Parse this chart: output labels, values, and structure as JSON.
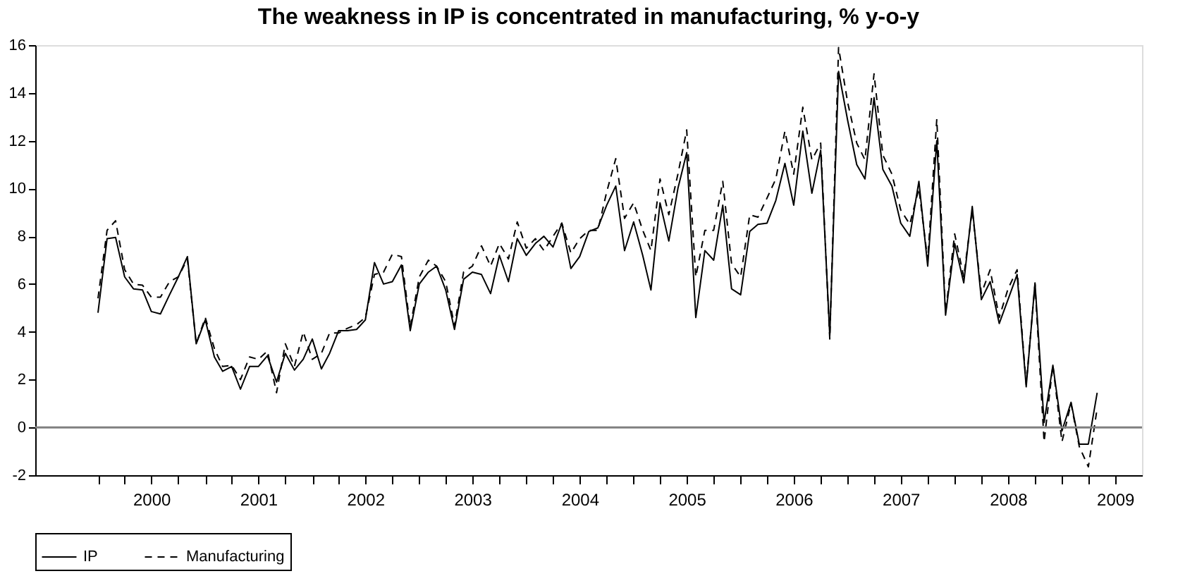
{
  "chart_data": {
    "type": "line",
    "title": "The weakness in IP is concentrated in manufacturing, % y-o-y",
    "x": [
      "2000-01",
      "2000-02",
      "2000-03",
      "2000-04",
      "2000-05",
      "2000-06",
      "2000-07",
      "2000-08",
      "2000-09",
      "2000-10",
      "2000-11",
      "2000-12",
      "2001-01",
      "2001-02",
      "2001-03",
      "2001-04",
      "2001-05",
      "2001-06",
      "2001-07",
      "2001-08",
      "2001-09",
      "2001-10",
      "2001-11",
      "2001-12",
      "2002-01",
      "2002-02",
      "2002-03",
      "2002-04",
      "2002-05",
      "2002-06",
      "2002-07",
      "2002-08",
      "2002-09",
      "2002-10",
      "2002-11",
      "2002-12",
      "2003-01",
      "2003-02",
      "2003-03",
      "2003-04",
      "2003-05",
      "2003-06",
      "2003-07",
      "2003-08",
      "2003-09",
      "2003-10",
      "2003-11",
      "2003-12",
      "2004-01",
      "2004-02",
      "2004-03",
      "2004-04",
      "2004-05",
      "2004-06",
      "2004-07",
      "2004-08",
      "2004-09",
      "2004-10",
      "2004-11",
      "2004-12",
      "2005-01",
      "2005-02",
      "2005-03",
      "2005-04",
      "2005-05",
      "2005-06",
      "2005-07",
      "2005-08",
      "2005-09",
      "2005-10",
      "2005-11",
      "2005-12",
      "2006-01",
      "2006-02",
      "2006-03",
      "2006-04",
      "2006-05",
      "2006-06",
      "2006-07",
      "2006-08",
      "2006-09",
      "2006-10",
      "2006-11",
      "2006-12",
      "2007-01",
      "2007-02",
      "2007-03",
      "2007-04",
      "2007-05",
      "2007-06",
      "2007-07",
      "2007-08",
      "2007-09",
      "2007-10",
      "2007-11",
      "2007-12",
      "2008-01",
      "2008-02",
      "2008-03",
      "2008-04",
      "2008-05",
      "2008-06",
      "2008-07",
      "2008-08",
      "2008-09",
      "2008-10",
      "2008-11",
      "2008-12",
      "2009-01",
      "2009-02",
      "2009-03",
      "2009-04",
      "2009-05"
    ],
    "series": [
      {
        "name": "IP",
        "color": "#000000",
        "line_style": "solid",
        "values": [
          4.8,
          7.9,
          7.95,
          6.3,
          5.8,
          5.75,
          4.85,
          4.75,
          5.55,
          6.3,
          7.15,
          3.5,
          4.5,
          2.95,
          2.35,
          2.55,
          1.6,
          2.55,
          2.55,
          3.0,
          1.9,
          3.1,
          2.4,
          2.85,
          3.7,
          2.45,
          3.1,
          4.05,
          4.05,
          4.1,
          4.5,
          6.9,
          6.0,
          6.1,
          6.8,
          4.05,
          6.0,
          6.5,
          6.75,
          5.75,
          4.1,
          6.2,
          6.5,
          6.4,
          5.6,
          7.2,
          6.1,
          7.9,
          7.2,
          7.7,
          8.0,
          7.55,
          8.55,
          6.65,
          7.15,
          8.2,
          8.35,
          9.3,
          10.1,
          7.4,
          8.6,
          7.2,
          5.75,
          9.4,
          7.8,
          10.0,
          11.5,
          4.6,
          7.4,
          7.0,
          9.3,
          5.8,
          5.55,
          8.2,
          8.5,
          8.55,
          9.5,
          11.05,
          9.3,
          12.4,
          9.8,
          11.6,
          3.85,
          14.9,
          12.85,
          11.0,
          10.4,
          13.8,
          10.8,
          10.1,
          8.55,
          8.0,
          10.3,
          6.75,
          12.0,
          4.7,
          7.7,
          6.05,
          9.25,
          5.35,
          6.1,
          4.35,
          5.35,
          6.4,
          1.7,
          6.05,
          0.2,
          2.6,
          -0.15,
          1.05,
          -0.7,
          -0.7,
          1.45
        ]
      },
      {
        "name": "Manufacturing",
        "color": "#000000",
        "line_style": "dashed",
        "values": [
          5.4,
          8.25,
          8.65,
          6.6,
          6.0,
          5.95,
          5.45,
          5.45,
          6.1,
          6.3,
          7.05,
          3.5,
          4.6,
          3.3,
          2.55,
          2.6,
          2.0,
          2.95,
          2.85,
          3.2,
          1.45,
          3.5,
          2.55,
          4.0,
          2.85,
          3.1,
          3.95,
          3.95,
          4.15,
          4.3,
          4.6,
          6.4,
          6.5,
          7.25,
          7.15,
          4.2,
          6.3,
          7.0,
          6.75,
          6.1,
          4.25,
          6.5,
          6.75,
          7.6,
          6.75,
          7.7,
          7.05,
          8.6,
          7.5,
          7.9,
          7.4,
          8.0,
          8.55,
          7.3,
          7.9,
          8.25,
          8.25,
          9.85,
          11.25,
          8.75,
          9.4,
          8.25,
          7.4,
          10.4,
          8.9,
          10.6,
          12.45,
          6.3,
          8.25,
          8.25,
          10.3,
          6.85,
          6.3,
          8.9,
          8.8,
          9.6,
          10.4,
          12.4,
          10.6,
          13.4,
          11.2,
          11.9,
          3.7,
          15.9,
          13.6,
          11.9,
          11.2,
          14.8,
          11.4,
          10.6,
          9.1,
          8.5,
          10.0,
          7.0,
          12.9,
          4.8,
          8.1,
          6.3,
          9.1,
          5.6,
          6.6,
          4.6,
          5.8,
          6.6,
          1.8,
          6.0,
          -0.6,
          2.6,
          -0.6,
          1.0,
          -0.8,
          -1.65,
          0.8
        ]
      }
    ],
    "xlim": [
      "1999-06",
      "2009-10"
    ],
    "xticks": [
      {
        "value": "2000-01",
        "label": null
      },
      {
        "value": "2000-04",
        "label": null
      },
      {
        "value": "2000-07",
        "label": "2000"
      },
      {
        "value": "2000-10",
        "label": null
      },
      {
        "value": "2001-01",
        "label": null
      },
      {
        "value": "2001-04",
        "label": null
      },
      {
        "value": "2001-07",
        "label": "2001"
      },
      {
        "value": "2001-10",
        "label": null
      },
      {
        "value": "2002-01",
        "label": null
      },
      {
        "value": "2002-04",
        "label": null
      },
      {
        "value": "2002-07",
        "label": "2002"
      },
      {
        "value": "2002-10",
        "label": null
      },
      {
        "value": "2003-01",
        "label": null
      },
      {
        "value": "2003-04",
        "label": null
      },
      {
        "value": "2003-07",
        "label": "2003"
      },
      {
        "value": "2003-10",
        "label": null
      },
      {
        "value": "2004-01",
        "label": null
      },
      {
        "value": "2004-04",
        "label": null
      },
      {
        "value": "2004-07",
        "label": "2004"
      },
      {
        "value": "2004-10",
        "label": null
      },
      {
        "value": "2005-01",
        "label": null
      },
      {
        "value": "2005-04",
        "label": null
      },
      {
        "value": "2005-07",
        "label": "2005"
      },
      {
        "value": "2005-10",
        "label": null
      },
      {
        "value": "2006-01",
        "label": null
      },
      {
        "value": "2006-04",
        "label": null
      },
      {
        "value": "2006-07",
        "label": "2006"
      },
      {
        "value": "2006-10",
        "label": null
      },
      {
        "value": "2007-01",
        "label": null
      },
      {
        "value": "2007-04",
        "label": null
      },
      {
        "value": "2007-07",
        "label": "2007"
      },
      {
        "value": "2007-10",
        "label": null
      },
      {
        "value": "2008-01",
        "label": null
      },
      {
        "value": "2008-04",
        "label": null
      },
      {
        "value": "2008-07",
        "label": "2008"
      },
      {
        "value": "2008-10",
        "label": null
      },
      {
        "value": "2009-01",
        "label": null
      },
      {
        "value": "2009-04",
        "label": null
      },
      {
        "value": "2009-07",
        "label": "2009"
      }
    ],
    "ylim": [
      -2,
      16
    ],
    "yticks": [
      -2,
      0,
      2,
      4,
      6,
      8,
      10,
      12,
      14,
      16
    ],
    "ref_lines": [
      {
        "axis": "y",
        "value": 0,
        "color": "#808080"
      }
    ],
    "grid": false,
    "legend": "bottom",
    "marker": "none"
  }
}
